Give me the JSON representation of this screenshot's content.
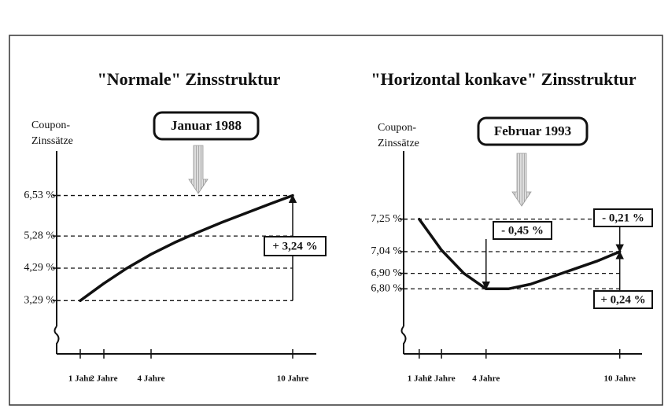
{
  "chart_data": [
    {
      "type": "line",
      "title": "\"Normale\" Zinsstruktur",
      "ylabel": [
        "Coupon-",
        "Zinssätze"
      ],
      "annotations": [
        "Januar 1988",
        "+ 3,24 %"
      ],
      "x": [
        1,
        2,
        3,
        4,
        5,
        6,
        7,
        8,
        9,
        10
      ],
      "series": [
        {
          "color": "#111111",
          "values": [
            3.29,
            3.82,
            4.3,
            4.72,
            5.08,
            5.4,
            5.7,
            5.98,
            6.26,
            6.53
          ]
        }
      ],
      "xlim": [
        0,
        11
      ],
      "ylim": [
        1.65,
        7.9
      ],
      "xticks": [
        {
          "value": 1,
          "label": "1 Jahr"
        },
        {
          "value": 2,
          "label": "2 Jahre"
        },
        {
          "value": 4,
          "label": "4 Jahre"
        },
        {
          "value": 10,
          "label": "10 Jahre"
        }
      ],
      "yticks": [
        {
          "value": 3.29,
          "label": "3,29 %"
        },
        {
          "value": 4.29,
          "label": "4,29 %"
        },
        {
          "value": 5.28,
          "label": "5,28 %"
        },
        {
          "value": 6.53,
          "label": "6,53 %"
        }
      ],
      "grid": true
    },
    {
      "type": "line",
      "title": "\"Horizontal konkave\" Zinsstruktur",
      "ylabel": [
        "Coupon-",
        "Zinssätze"
      ],
      "annotations": [
        "Februar 1993",
        "- 0,45 %",
        "- 0,21 %",
        "+ 0,24 %"
      ],
      "x": [
        1,
        2,
        3,
        4,
        5,
        6,
        7,
        8,
        9,
        10
      ],
      "series": [
        {
          "color": "#111111",
          "values": [
            7.25,
            7.05,
            6.9,
            6.8,
            6.8,
            6.83,
            6.88,
            6.93,
            6.98,
            7.04
          ]
        }
      ],
      "xlim": [
        0.3,
        11
      ],
      "ylim": [
        6.38,
        7.69
      ],
      "xticks": [
        {
          "value": 1,
          "label": "1 Jahr"
        },
        {
          "value": 2,
          "label": "2 Jahre"
        },
        {
          "value": 4,
          "label": "4 Jahre"
        },
        {
          "value": 10,
          "label": "10 Jahre"
        }
      ],
      "yticks": [
        {
          "value": 6.8,
          "label": "6,80 %"
        },
        {
          "value": 6.9,
          "label": "6,90 %"
        },
        {
          "value": 7.04,
          "label": "7,04 %"
        },
        {
          "value": 7.25,
          "label": "7,25 %"
        }
      ],
      "grid": true
    }
  ]
}
